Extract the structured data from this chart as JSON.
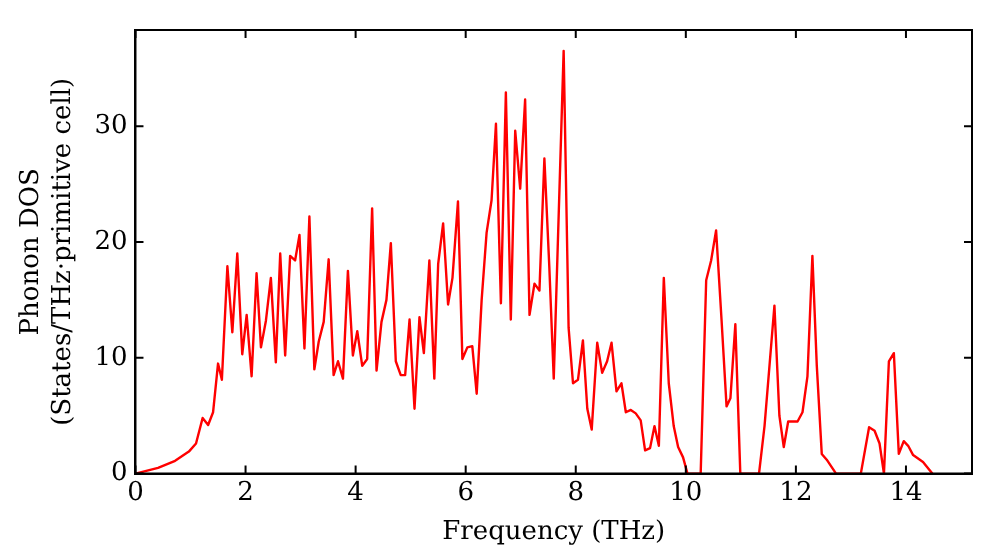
{
  "chart_data": {
    "type": "line",
    "xlabel": "Frequency (THz)",
    "ylabel": "Phonon DOS\n(States/THz·primitive cell)",
    "xlim": [
      0,
      15.2
    ],
    "ylim": [
      0,
      38.3
    ],
    "xticks": [
      0,
      2,
      4,
      6,
      8,
      10,
      12,
      14
    ],
    "yticks": [
      0,
      10,
      20,
      30
    ],
    "grid": false,
    "legend": false,
    "series": [
      {
        "color": "#ff0000",
        "x": [
          0,
          0.41,
          0.72,
          0.97,
          1.1,
          1.22,
          1.32,
          1.41,
          1.5,
          1.57,
          1.67,
          1.76,
          1.85,
          1.94,
          2.02,
          2.11,
          2.2,
          2.28,
          2.37,
          2.46,
          2.55,
          2.63,
          2.72,
          2.81,
          2.9,
          2.98,
          3.07,
          3.16,
          3.25,
          3.33,
          3.42,
          3.51,
          3.6,
          3.68,
          3.77,
          3.86,
          3.95,
          4.03,
          4.12,
          4.21,
          4.3,
          4.38,
          4.47,
          4.56,
          4.64,
          4.73,
          4.82,
          4.9,
          4.98,
          5.07,
          5.16,
          5.24,
          5.34,
          5.43,
          5.5,
          5.59,
          5.68,
          5.76,
          5.86,
          5.94,
          6.03,
          6.12,
          6.2,
          6.29,
          6.38,
          6.47,
          6.55,
          6.64,
          6.73,
          6.82,
          6.9,
          6.99,
          7.08,
          7.16,
          7.25,
          7.34,
          7.43,
          7.52,
          7.6,
          7.78,
          7.87,
          7.95,
          8.04,
          8.13,
          8.21,
          8.29,
          8.39,
          8.48,
          8.57,
          8.65,
          8.74,
          8.83,
          8.91,
          9.0,
          9.09,
          9.18,
          9.26,
          9.35,
          9.43,
          9.51,
          9.6,
          9.69,
          9.78,
          9.86,
          9.95,
          10.03,
          10.27,
          10.37,
          10.46,
          10.55,
          10.65,
          10.74,
          10.81,
          10.9,
          10.99,
          11.33,
          11.43,
          11.52,
          11.61,
          11.7,
          11.78,
          11.86,
          11.95,
          12.03,
          12.12,
          12.21,
          12.3,
          12.38,
          12.47,
          12.56,
          12.73,
          13.18,
          13.33,
          13.43,
          13.52,
          13.6,
          13.69,
          13.78,
          13.87,
          13.96,
          14.04,
          14.13,
          14.31,
          14.48
        ],
        "values": [
          0,
          0.5,
          1.1,
          1.9,
          2.6,
          4.8,
          4.2,
          5.3,
          9.5,
          8.1,
          17.9,
          12.2,
          19,
          10.3,
          13.7,
          8.4,
          17.3,
          10.9,
          13.2,
          16.9,
          9.6,
          19,
          10.2,
          18.8,
          18.4,
          20.6,
          10.8,
          22.2,
          9,
          11.4,
          13.1,
          18.5,
          8.5,
          9.7,
          8.2,
          17.5,
          10.2,
          12.3,
          9.3,
          9.9,
          22.9,
          8.9,
          13.1,
          15,
          19.9,
          9.7,
          8.5,
          8.5,
          13.3,
          5.6,
          13.5,
          10.4,
          18.4,
          8.2,
          18.1,
          21.6,
          14.6,
          16.9,
          23.5,
          9.9,
          10.9,
          11,
          6.9,
          15,
          20.8,
          23.6,
          30.2,
          14.7,
          32.9,
          13.3,
          29.6,
          24.6,
          32.3,
          13.7,
          16.4,
          15.8,
          27.2,
          17.8,
          8.2,
          36.5,
          12.6,
          7.8,
          8.1,
          11.5,
          5.6,
          3.8,
          11.3,
          8.7,
          9.7,
          11.3,
          7.1,
          7.8,
          5.3,
          5.5,
          5.2,
          4.6,
          2,
          2.2,
          4.1,
          2.4,
          16.9,
          7.8,
          4.1,
          2.3,
          1.4,
          0,
          0,
          16.7,
          18.4,
          21,
          13.2,
          5.8,
          6.5,
          12.9,
          0,
          0,
          4.1,
          9.3,
          14.5,
          5,
          2.3,
          4.5,
          4.5,
          4.5,
          5.3,
          8.4,
          18.8,
          9.3,
          1.7,
          1.2,
          0,
          0,
          4,
          3.7,
          2.6,
          0,
          9.7,
          10.4,
          1.7,
          2.8,
          2.4,
          1.6,
          1,
          0
        ]
      }
    ]
  }
}
